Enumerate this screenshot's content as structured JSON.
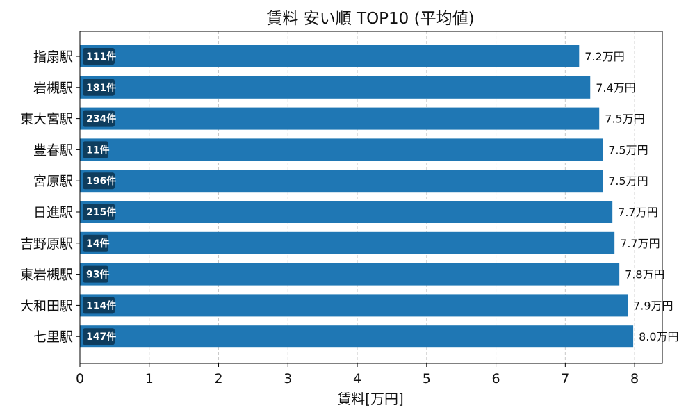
{
  "chart_data": {
    "type": "bar",
    "orientation": "horizontal",
    "title": "賃料 安い順 TOP10 (平均値)",
    "xlabel": "賃料[万円]",
    "ylabel": "",
    "xlim": [
      0,
      8.4
    ],
    "xticks": [
      0,
      1,
      2,
      3,
      4,
      5,
      6,
      7,
      8
    ],
    "grid": "x-dashed",
    "categories": [
      "指扇駅",
      "岩槻駅",
      "東大宮駅",
      "豊春駅",
      "宮原駅",
      "日進駅",
      "吉野原駅",
      "東岩槻駅",
      "大和田駅",
      "七里駅"
    ],
    "values": [
      7.2,
      7.36,
      7.49,
      7.54,
      7.54,
      7.68,
      7.71,
      7.78,
      7.9,
      7.98
    ],
    "value_labels": [
      "7.2万円",
      "7.4万円",
      "7.5万円",
      "7.5万円",
      "7.5万円",
      "7.7万円",
      "7.7万円",
      "7.8万円",
      "7.9万円",
      "8.0万円"
    ],
    "count_labels": [
      "111件",
      "181件",
      "234件",
      "11件",
      "196件",
      "215件",
      "14件",
      "93件",
      "114件",
      "147件"
    ],
    "colors": {
      "bar": "#1f77b4",
      "badge": "#0e3d5e",
      "grid": "#c8c8c8",
      "axis": "#000000"
    }
  }
}
